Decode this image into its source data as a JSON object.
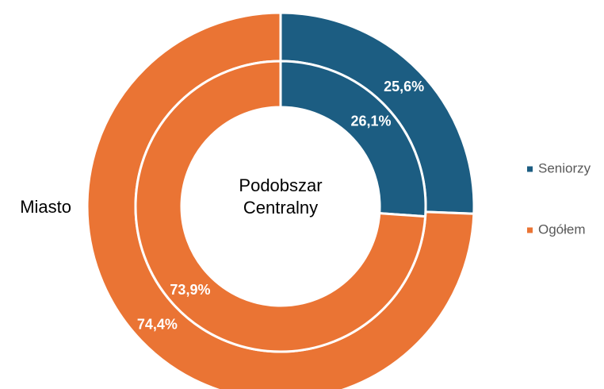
{
  "chart_data": {
    "type": "donut",
    "categories": [
      "Seniorzy",
      "Ogółem"
    ],
    "colors": [
      "#1c5d82",
      "#ea7434"
    ],
    "series": [
      {
        "name": "Miasto",
        "values": [
          25.6,
          74.4
        ],
        "value_labels": [
          "25,6%",
          "74,4%"
        ]
      },
      {
        "name": "Podobszar Centralny",
        "values": [
          26.1,
          73.9
        ],
        "value_labels": [
          "26,1%",
          "73,9%"
        ]
      }
    ],
    "legend": "right"
  }
}
